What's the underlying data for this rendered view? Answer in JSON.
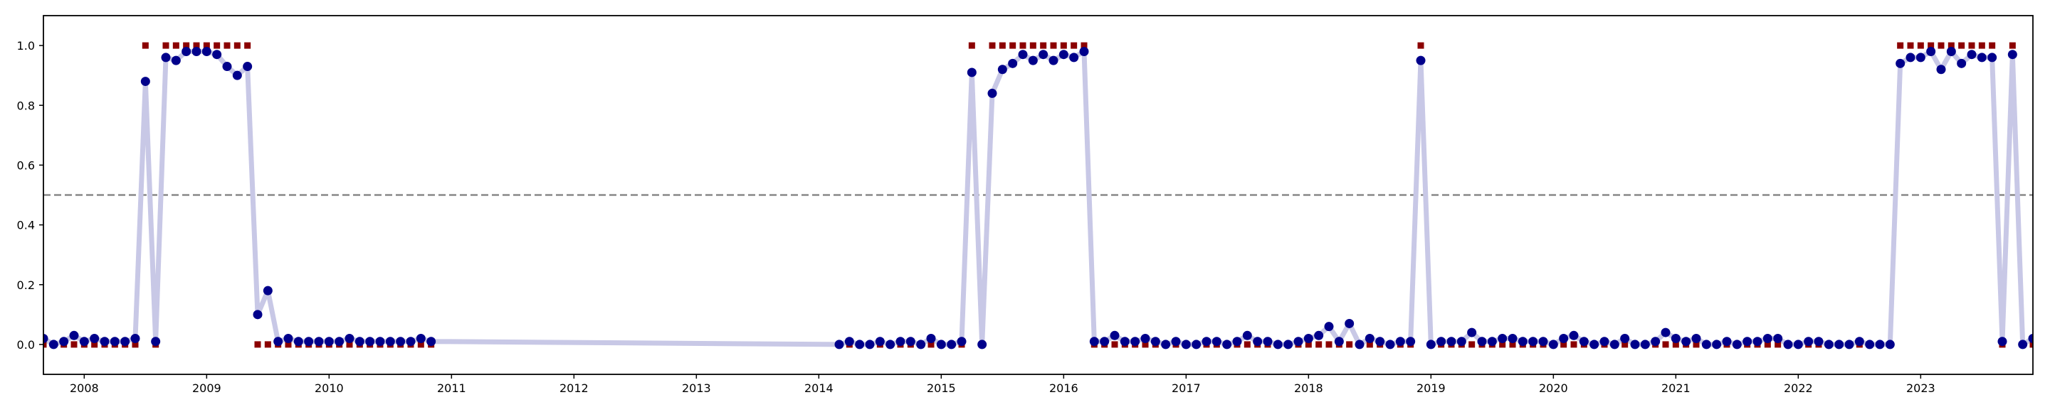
{
  "chart_data": {
    "type": "line",
    "x": [
      "2007-09",
      "2007-10",
      "2007-11",
      "2007-12",
      "2008-01",
      "2008-02",
      "2008-03",
      "2008-04",
      "2008-05",
      "2008-06",
      "2008-07",
      "2008-08",
      "2008-09",
      "2008-10",
      "2008-11",
      "2008-12",
      "2009-01",
      "2009-02",
      "2009-03",
      "2009-04",
      "2009-05",
      "2009-06",
      "2009-07",
      "2009-08",
      "2009-09",
      "2009-10",
      "2009-11",
      "2009-12",
      "2010-01",
      "2010-02",
      "2010-03",
      "2010-04",
      "2010-05",
      "2010-06",
      "2010-07",
      "2010-08",
      "2010-09",
      "2010-10",
      "2010-11",
      "2014-03",
      "2014-04",
      "2014-05",
      "2014-06",
      "2014-07",
      "2014-08",
      "2014-09",
      "2014-10",
      "2014-11",
      "2014-12",
      "2015-01",
      "2015-02",
      "2015-03",
      "2015-04",
      "2015-05",
      "2015-06",
      "2015-07",
      "2015-08",
      "2015-09",
      "2015-10",
      "2015-11",
      "2015-12",
      "2016-01",
      "2016-02",
      "2016-03",
      "2016-04",
      "2016-05",
      "2016-06",
      "2016-07",
      "2016-08",
      "2016-09",
      "2016-10",
      "2016-11",
      "2016-12",
      "2017-01",
      "2017-02",
      "2017-03",
      "2017-04",
      "2017-05",
      "2017-06",
      "2017-07",
      "2017-08",
      "2017-09",
      "2017-10",
      "2017-11",
      "2017-12",
      "2018-01",
      "2018-02",
      "2018-03",
      "2018-04",
      "2018-05",
      "2018-06",
      "2018-07",
      "2018-08",
      "2018-09",
      "2018-10",
      "2018-11",
      "2018-12",
      "2019-01",
      "2019-02",
      "2019-03",
      "2019-04",
      "2019-05",
      "2019-06",
      "2019-07",
      "2019-08",
      "2019-09",
      "2019-10",
      "2019-11",
      "2019-12",
      "2020-01",
      "2020-02",
      "2020-03",
      "2020-04",
      "2020-05",
      "2020-06",
      "2020-07",
      "2020-08",
      "2020-09",
      "2020-10",
      "2020-11",
      "2020-12",
      "2021-01",
      "2021-02",
      "2021-03",
      "2021-04",
      "2021-05",
      "2021-06",
      "2021-07",
      "2021-08",
      "2021-09",
      "2021-10",
      "2021-11",
      "2021-12",
      "2022-01",
      "2022-02",
      "2022-03",
      "2022-04",
      "2022-05",
      "2022-06",
      "2022-07",
      "2022-08",
      "2022-09",
      "2022-10",
      "2022-11",
      "2022-12",
      "2023-01",
      "2023-02",
      "2023-03",
      "2023-04",
      "2023-05",
      "2023-06",
      "2023-07",
      "2023-08",
      "2023-09",
      "2023-10",
      "2023-11",
      "2023-12"
    ],
    "series": [
      {
        "color": "#00008b",
        "line_color": "#c8c8e6",
        "marker": "circle",
        "values": [
          0.02,
          0.0,
          0.01,
          0.03,
          0.01,
          0.02,
          0.01,
          0.01,
          0.01,
          0.02,
          0.88,
          0.01,
          0.96,
          0.95,
          0.98,
          0.98,
          0.98,
          0.97,
          0.93,
          0.9,
          0.93,
          0.1,
          0.18,
          0.01,
          0.02,
          0.01,
          0.01,
          0.01,
          0.01,
          0.01,
          0.02,
          0.01,
          0.01,
          0.01,
          0.01,
          0.01,
          0.01,
          0.02,
          0.01,
          0.0,
          0.01,
          0.0,
          0.0,
          0.01,
          0.0,
          0.01,
          0.01,
          0.0,
          0.02,
          0.0,
          0.0,
          0.01,
          0.91,
          0.0,
          0.84,
          0.92,
          0.94,
          0.97,
          0.95,
          0.97,
          0.95,
          0.97,
          0.96,
          0.98,
          0.01,
          0.01,
          0.03,
          0.01,
          0.01,
          0.02,
          0.01,
          0.0,
          0.01,
          0.0,
          0.0,
          0.01,
          0.01,
          0.0,
          0.01,
          0.03,
          0.01,
          0.01,
          0.0,
          0.0,
          0.01,
          0.02,
          0.03,
          0.06,
          0.01,
          0.07,
          0.0,
          0.02,
          0.01,
          0.0,
          0.01,
          0.01,
          0.95,
          0.0,
          0.01,
          0.01,
          0.01,
          0.04,
          0.01,
          0.01,
          0.02,
          0.02,
          0.01,
          0.01,
          0.01,
          0.0,
          0.02,
          0.03,
          0.01,
          0.0,
          0.01,
          0.0,
          0.02,
          0.0,
          0.0,
          0.01,
          0.04,
          0.02,
          0.01,
          0.02,
          0.0,
          0.0,
          0.01,
          0.0,
          0.01,
          0.01,
          0.02,
          0.02,
          0.0,
          0.0,
          0.01,
          0.01,
          0.0,
          0.0,
          0.0,
          0.01,
          0.0,
          0.0,
          0.0,
          0.94,
          0.96,
          0.96,
          0.98,
          0.92,
          0.98,
          0.94,
          0.97,
          0.96,
          0.96,
          0.01,
          0.97,
          0.0,
          0.02
        ]
      },
      {
        "color": "#8b0000",
        "marker": "square",
        "values": [
          0,
          0,
          0,
          0,
          0,
          0,
          0,
          0,
          0,
          0,
          1,
          0,
          1,
          1,
          1,
          1,
          1,
          1,
          1,
          1,
          1,
          0,
          0,
          0,
          0,
          0,
          0,
          0,
          0,
          0,
          0,
          0,
          0,
          0,
          0,
          0,
          0,
          0,
          0,
          0,
          0,
          0,
          0,
          0,
          0,
          0,
          0,
          0,
          0,
          0,
          0,
          0,
          1,
          0,
          1,
          1,
          1,
          1,
          1,
          1,
          1,
          1,
          1,
          1,
          0,
          0,
          0,
          0,
          0,
          0,
          0,
          0,
          0,
          0,
          0,
          0,
          0,
          0,
          0,
          0,
          0,
          0,
          0,
          0,
          0,
          0,
          0,
          0,
          0,
          0,
          0,
          0,
          0,
          0,
          0,
          0,
          1,
          0,
          0,
          0,
          0,
          0,
          0,
          0,
          0,
          0,
          0,
          0,
          0,
          0,
          0,
          0,
          0,
          0,
          0,
          0,
          0,
          0,
          0,
          0,
          0,
          0,
          0,
          0,
          0,
          0,
          0,
          0,
          0,
          0,
          0,
          0,
          0,
          0,
          0,
          0,
          0,
          0,
          0,
          0,
          0,
          0,
          0,
          1,
          1,
          1,
          1,
          1,
          1,
          1,
          1,
          1,
          1,
          0,
          1,
          0,
          0
        ]
      }
    ],
    "threshold": 0.5,
    "threshold_color": "#888888",
    "xlim": [
      "2007-09",
      "2023-12"
    ],
    "xticks": [
      {
        "value": "2008-01",
        "label": "2008"
      },
      {
        "value": "2009-01",
        "label": "2009"
      },
      {
        "value": "2010-01",
        "label": "2010"
      },
      {
        "value": "2011-01",
        "label": "2011"
      },
      {
        "value": "2012-01",
        "label": "2012"
      },
      {
        "value": "2013-01",
        "label": "2013"
      },
      {
        "value": "2014-01",
        "label": "2014"
      },
      {
        "value": "2015-01",
        "label": "2015"
      },
      {
        "value": "2016-01",
        "label": "2016"
      },
      {
        "value": "2017-01",
        "label": "2017"
      },
      {
        "value": "2018-01",
        "label": "2018"
      },
      {
        "value": "2019-01",
        "label": "2019"
      },
      {
        "value": "2020-01",
        "label": "2020"
      },
      {
        "value": "2021-01",
        "label": "2021"
      },
      {
        "value": "2022-01",
        "label": "2022"
      },
      {
        "value": "2023-01",
        "label": "2023"
      }
    ],
    "ylim": [
      -0.1,
      1.1
    ],
    "yticks": [
      {
        "value": 0,
        "label": "0.0"
      },
      {
        "value": 0.2,
        "label": "0.2"
      },
      {
        "value": 0.4,
        "label": "0.4"
      },
      {
        "value": 0.6,
        "label": "0.6"
      },
      {
        "value": 0.8,
        "label": "0.8"
      },
      {
        "value": 1,
        "label": "1.0"
      }
    ],
    "grid": false
  }
}
